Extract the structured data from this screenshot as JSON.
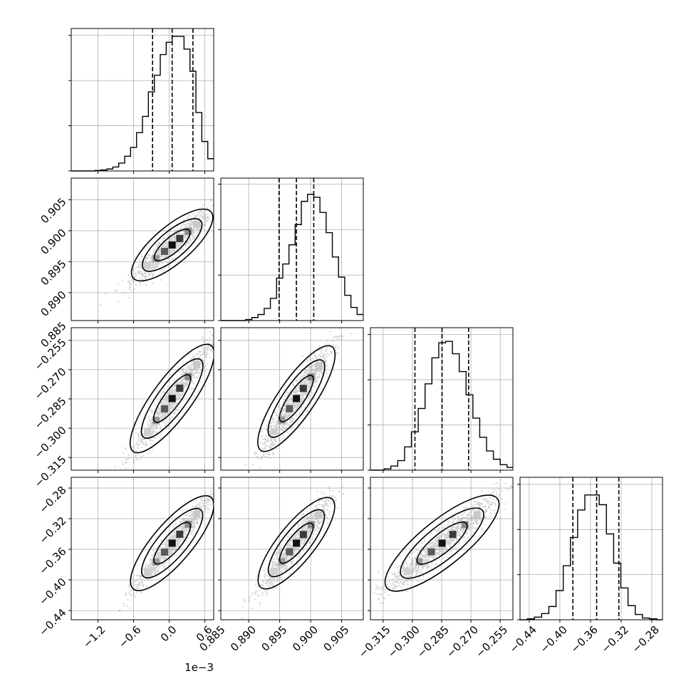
{
  "chart_data": {
    "type": "corner",
    "parameters": 4,
    "x_offset_labels": [
      "1e−3",
      "",
      "",
      ""
    ],
    "panels": [
      {
        "kind": "histogram",
        "row": 0,
        "col": 0,
        "xlim": [
          -1.65,
          0.75
        ],
        "xticks": [
          -1.2,
          -0.6,
          0.0,
          0.6
        ],
        "quantiles": [
          -0.28,
          0.05,
          0.4
        ],
        "bin_edges": [
          -1.65,
          -1.55,
          -1.45,
          -1.35,
          -1.25,
          -1.15,
          -1.05,
          -0.95,
          -0.85,
          -0.75,
          -0.65,
          -0.55,
          -0.45,
          -0.35,
          -0.25,
          -0.15,
          -0.05,
          0.05,
          0.15,
          0.25,
          0.35,
          0.45,
          0.55,
          0.65,
          0.75
        ],
        "counts": [
          0,
          0,
          0,
          0,
          1,
          2,
          4,
          8,
          16,
          30,
          48,
          78,
          111,
          161,
          195,
          237,
          262,
          274,
          274,
          248,
          203,
          119,
          60,
          25
        ],
        "ylim": [
          0,
          290
        ],
        "yticks": [
          0,
          92,
          184,
          276
        ]
      },
      {
        "kind": "histogram",
        "row": 1,
        "col": 1,
        "xlim": [
          0.8855,
          0.9085
        ],
        "xticks": [
          0.885,
          0.89,
          0.895,
          0.9,
          0.905
        ],
        "quantiles": [
          0.8949,
          0.8977,
          0.9005
        ],
        "bin_edges": [
          0.8855,
          0.8865,
          0.8875,
          0.8885,
          0.8895,
          0.8905,
          0.8915,
          0.8925,
          0.8935,
          0.8945,
          0.8955,
          0.8965,
          0.8975,
          0.8985,
          0.8995,
          0.9005,
          0.9015,
          0.9025,
          0.9035,
          0.9045,
          0.9055,
          0.9065,
          0.9075,
          0.9085
        ],
        "counts": [
          0,
          0,
          0,
          0,
          1,
          3,
          6,
          12,
          22,
          42,
          56,
          75,
          95,
          118,
          125,
          122,
          107,
          87,
          63,
          43,
          25,
          13,
          6
        ],
        "ylim": [
          0,
          141
        ],
        "yticks": [
          0,
          45,
          90,
          135
        ]
      },
      {
        "kind": "histogram",
        "row": 2,
        "col": 2,
        "xlim": [
          -0.3215,
          -0.2485
        ],
        "xticks": [
          -0.315,
          -0.3,
          -0.285,
          -0.27,
          -0.255
        ],
        "quantiles": [
          -0.2987,
          -0.2848,
          -0.2712
        ],
        "bin_edges": [
          -0.3215,
          -0.318,
          -0.3145,
          -0.311,
          -0.3075,
          -0.304,
          -0.3005,
          -0.297,
          -0.2935,
          -0.29,
          -0.2865,
          -0.283,
          -0.2795,
          -0.276,
          -0.2725,
          -0.269,
          -0.2655,
          -0.262,
          -0.2585,
          -0.255,
          -0.2515,
          -0.2485
        ],
        "counts": [
          0,
          0,
          1,
          3,
          7,
          17,
          28,
          45,
          63,
          82,
          93,
          94,
          85,
          72,
          55,
          38,
          24,
          14,
          8,
          4,
          2
        ],
        "ylim": [
          0,
          104
        ],
        "yticks": [
          0,
          33,
          66,
          99
        ]
      },
      {
        "kind": "histogram",
        "row": 3,
        "col": 3,
        "xlim": [
          -0.452,
          -0.266
        ],
        "xticks": [
          -0.44,
          -0.4,
          -0.36,
          -0.32,
          -0.28
        ],
        "quantiles": [
          -0.383,
          -0.352,
          -0.323
        ],
        "bin_edges": [
          -0.452,
          -0.4426,
          -0.4332,
          -0.4238,
          -0.4144,
          -0.405,
          -0.3956,
          -0.3862,
          -0.3768,
          -0.3674,
          -0.358,
          -0.3486,
          -0.3392,
          -0.3298,
          -0.3204,
          -0.311,
          -0.3016,
          -0.2922,
          -0.2828,
          -0.2734,
          -0.266
        ],
        "counts": [
          0,
          1,
          3,
          7,
          15,
          33,
          61,
          93,
          124,
          141,
          141,
          130,
          97,
          64,
          36,
          16,
          6,
          2,
          1,
          0
        ],
        "ylim": [
          0,
          161
        ],
        "yticks": [
          0,
          51,
          102,
          153
        ]
      },
      {
        "kind": "scatter",
        "row": 1,
        "col": 0,
        "xlim": [
          -1.65,
          0.75
        ],
        "ylim": [
          0.8855,
          0.9085
        ],
        "yticks": [
          0.885,
          0.89,
          0.895,
          0.9,
          0.905
        ],
        "x_mean": 0.05,
        "y_mean": 0.8977,
        "x_sd": 0.32,
        "y_sd": 0.0028,
        "corr": 0.93
      },
      {
        "kind": "scatter",
        "row": 2,
        "col": 0,
        "xlim": [
          -1.65,
          0.75
        ],
        "ylim": [
          -0.3215,
          -0.2485
        ],
        "yticks": [
          -0.315,
          -0.3,
          -0.285,
          -0.27,
          -0.255
        ],
        "x_mean": 0.05,
        "y_mean": -0.2848,
        "x_sd": 0.32,
        "y_sd": 0.0138,
        "corr": 0.96
      },
      {
        "kind": "scatter",
        "row": 2,
        "col": 1,
        "xlim": [
          0.8855,
          0.9085
        ],
        "ylim": [
          -0.3215,
          -0.2485
        ],
        "x_mean": 0.8977,
        "y_mean": -0.2848,
        "x_sd": 0.0028,
        "y_sd": 0.0138,
        "corr": 0.94
      },
      {
        "kind": "scatter",
        "row": 3,
        "col": 0,
        "xlim": [
          -1.65,
          0.75
        ],
        "ylim": [
          -0.452,
          -0.266
        ],
        "yticks": [
          -0.44,
          -0.4,
          -0.36,
          -0.32,
          -0.28
        ],
        "x_mean": 0.05,
        "y_mean": -0.352,
        "x_sd": 0.32,
        "y_sd": 0.03,
        "corr": 0.97
      },
      {
        "kind": "scatter",
        "row": 3,
        "col": 1,
        "xlim": [
          0.8855,
          0.9085
        ],
        "ylim": [
          -0.452,
          -0.266
        ],
        "x_mean": 0.8977,
        "y_mean": -0.352,
        "x_sd": 0.0028,
        "y_sd": 0.03,
        "corr": 0.94
      },
      {
        "kind": "scatter",
        "row": 3,
        "col": 2,
        "xlim": [
          -0.3215,
          -0.2485
        ],
        "ylim": [
          -0.452,
          -0.266
        ],
        "x_mean": -0.2848,
        "y_mean": -0.352,
        "x_sd": 0.0138,
        "y_sd": 0.03,
        "corr": 0.95
      }
    ],
    "grid": true,
    "legend": "none",
    "colors": {
      "line": "#000000",
      "grid": "#b0b0b0",
      "points": "#808080"
    }
  }
}
